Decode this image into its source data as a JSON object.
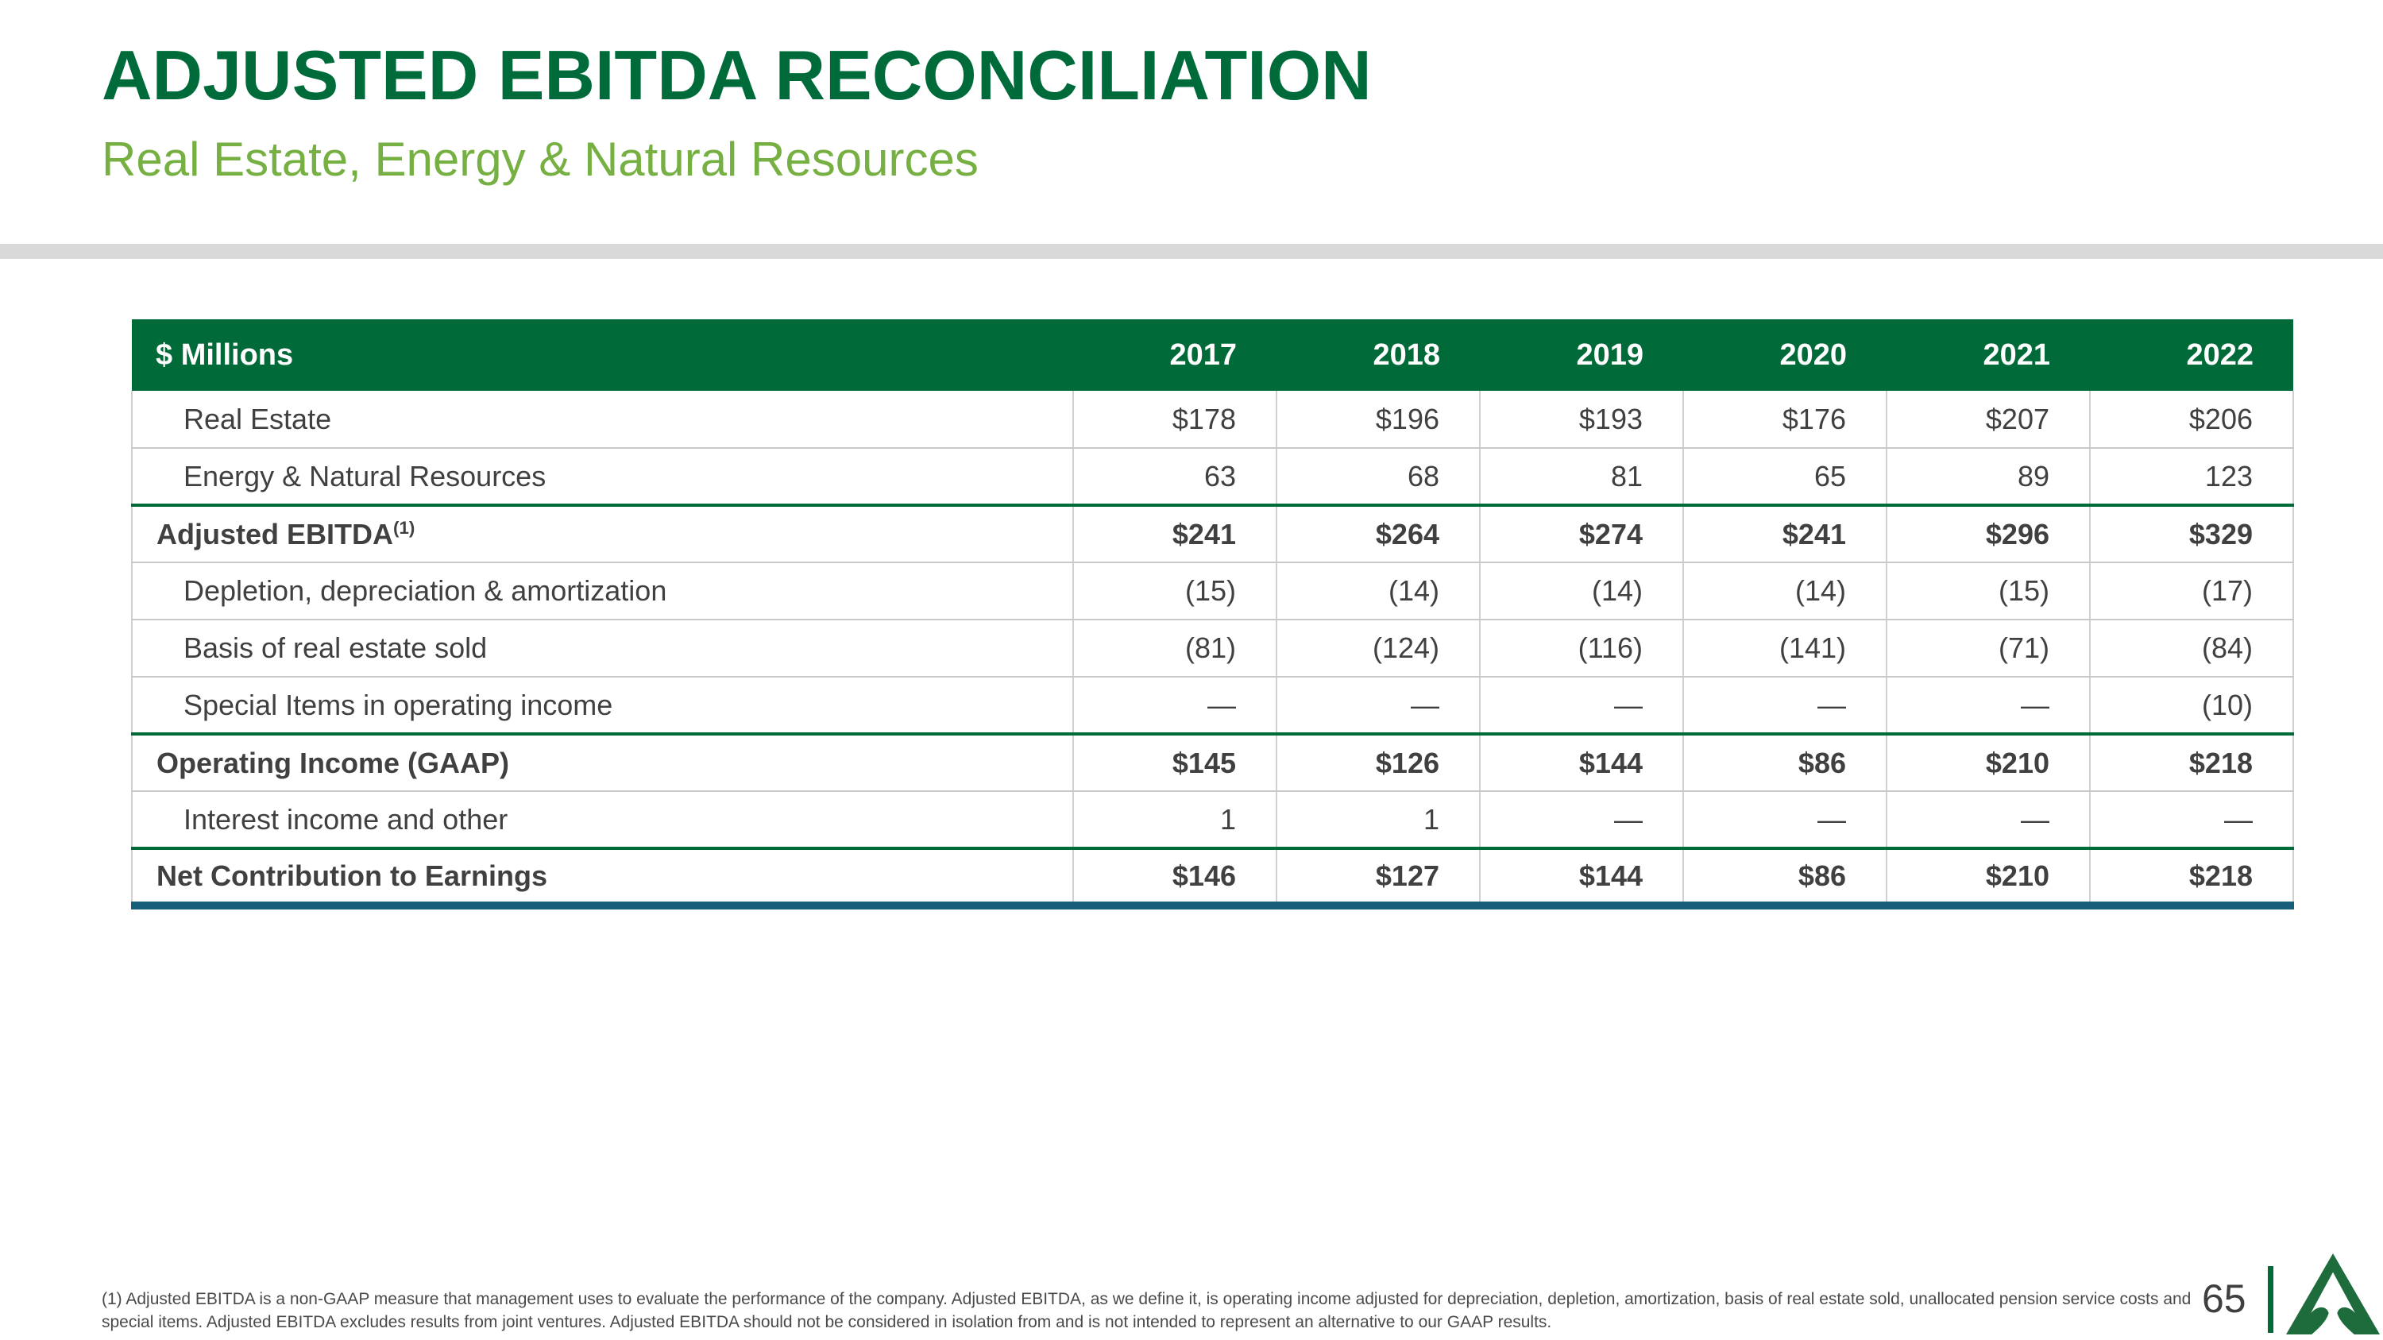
{
  "slide": {
    "title": "ADJUSTED EBITDA RECONCILIATION",
    "subtitle": "Real Estate, Energy & Natural Resources",
    "page_number": "65"
  },
  "colors": {
    "dark_green": "#006B38",
    "light_green": "#76B043",
    "teal_total_border": "#175E7A",
    "divider_gray": "#D9D9D9",
    "text_gray": "#404040"
  },
  "table": {
    "unit_label": "$ Millions",
    "years": [
      "2017",
      "2018",
      "2019",
      "2020",
      "2021",
      "2022"
    ],
    "rows": [
      {
        "label": "Real Estate",
        "style": "indent",
        "border": "gray",
        "values": [
          "$178",
          "$196",
          "$193",
          "$176",
          "$207",
          "$206"
        ]
      },
      {
        "label": "Energy & Natural Resources",
        "style": "indent",
        "border": "green",
        "values": [
          "63",
          "68",
          "81",
          "65",
          "89",
          "123"
        ]
      },
      {
        "label": "Adjusted EBITDA",
        "superscript": "(1)",
        "style": "bold",
        "border": "gray",
        "values": [
          "$241",
          "$264",
          "$274",
          "$241",
          "$296",
          "$329"
        ]
      },
      {
        "label": "Depletion, depreciation & amortization",
        "style": "indent",
        "border": "gray",
        "values": [
          "(15)",
          "(14)",
          "(14)",
          "(14)",
          "(15)",
          "(17)"
        ]
      },
      {
        "label": "Basis of real estate sold",
        "style": "indent",
        "border": "gray",
        "values": [
          "(81)",
          "(124)",
          "(116)",
          "(141)",
          "(71)",
          "(84)"
        ]
      },
      {
        "label": "Special Items in operating income",
        "style": "indent",
        "border": "green",
        "values": [
          "—",
          "—",
          "—",
          "—",
          "—",
          "(10)"
        ]
      },
      {
        "label": "Operating Income (GAAP)",
        "style": "bold",
        "border": "gray",
        "values": [
          "$145",
          "$126",
          "$144",
          "$86",
          "$210",
          "$218"
        ]
      },
      {
        "label": "Interest income and other",
        "style": "indent",
        "border": "green",
        "values": [
          "1",
          "1",
          "—",
          "—",
          "—",
          "—"
        ]
      },
      {
        "label": "Net Contribution to Earnings",
        "style": "bold",
        "border": "teal",
        "values": [
          "$146",
          "$127",
          "$144",
          "$86",
          "$210",
          "$218"
        ]
      }
    ]
  },
  "footnote": "(1) Adjusted EBITDA is a non-GAAP measure that management uses to evaluate the performance of the company. Adjusted EBITDA, as we define it, is operating income adjusted for depreciation, depletion, amortization, basis of real estate sold, unallocated pension service costs and special items. Adjusted EBITDA excludes results from joint ventures. Adjusted EBITDA should not be considered in isolation from and is not intended to represent an alternative to our GAAP results.",
  "logo": {
    "name": "tree-triangle-logo"
  }
}
